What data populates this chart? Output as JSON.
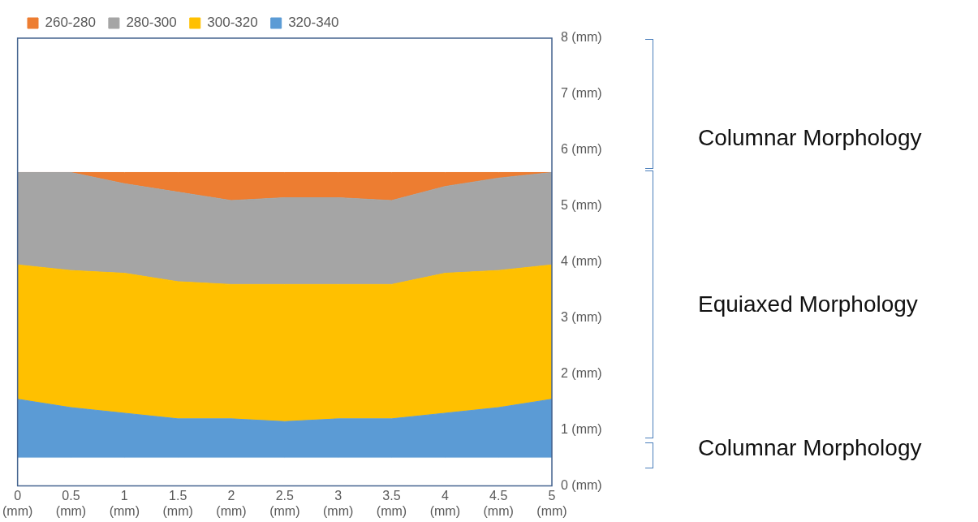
{
  "chart_data": {
    "type": "area",
    "stacked": true,
    "legend": "top",
    "x": [
      0,
      0.5,
      1,
      1.5,
      2,
      2.5,
      3,
      3.5,
      4,
      4.5,
      5
    ],
    "series": [
      {
        "color": "#ffffff",
        "values": [
          0.5,
          0.5,
          0.5,
          0.5,
          0.5,
          0.5,
          0.5,
          0.5,
          0.5,
          0.5,
          0.5
        ]
      },
      {
        "name": "320-340",
        "color": "#5b9bd5",
        "values": [
          1.05,
          0.9,
          0.8,
          0.7,
          0.7,
          0.65,
          0.7,
          0.7,
          0.8,
          0.9,
          1.05
        ]
      },
      {
        "name": "300-320",
        "color": "#ffc000",
        "values": [
          2.4,
          2.45,
          2.5,
          2.45,
          2.4,
          2.45,
          2.4,
          2.4,
          2.5,
          2.45,
          2.4
        ]
      },
      {
        "name": "280-300",
        "color": "#a5a5a5",
        "values": [
          1.65,
          1.75,
          1.6,
          1.6,
          1.5,
          1.55,
          1.55,
          1.5,
          1.55,
          1.65,
          1.65
        ]
      },
      {
        "name": "260-280",
        "color": "#ed7d31",
        "values": [
          0,
          0,
          0.2,
          0.35,
          0.5,
          0.45,
          0.45,
          0.5,
          0.25,
          0.1,
          0
        ]
      }
    ],
    "xlim": [
      0,
      5
    ],
    "xticks": [
      {
        "value": 0,
        "label": "0 (mm)"
      },
      {
        "value": 0.5,
        "label": "0.5 (mm)"
      },
      {
        "value": 1,
        "label": "1 (mm)"
      },
      {
        "value": 1.5,
        "label": "1.5 (mm)"
      },
      {
        "value": 2,
        "label": "2 (mm)"
      },
      {
        "value": 2.5,
        "label": "2.5 (mm)"
      },
      {
        "value": 3,
        "label": "3 (mm)"
      },
      {
        "value": 3.5,
        "label": "3.5 (mm)"
      },
      {
        "value": 4,
        "label": "4 (mm)"
      },
      {
        "value": 4.5,
        "label": "4.5 (mm)"
      },
      {
        "value": 5,
        "label": "5 (mm)"
      }
    ],
    "ylim": [
      0,
      8
    ],
    "yticks": [
      {
        "value": 0,
        "label": "0 (mm)"
      },
      {
        "value": 1,
        "label": "1 (mm)"
      },
      {
        "value": 2,
        "label": "2 (mm)"
      },
      {
        "value": 3,
        "label": "3 (mm)"
      },
      {
        "value": 4,
        "label": "4 (mm)"
      },
      {
        "value": 5,
        "label": "5 (mm)"
      },
      {
        "value": 6,
        "label": "6 (mm)"
      },
      {
        "value": 7,
        "label": "7 (mm)"
      },
      {
        "value": 8,
        "label": "8 (mm)"
      }
    ],
    "annotations": [
      "Columnar Morphology",
      "Equiaxed Morphology",
      "Columnar Morphology"
    ]
  }
}
